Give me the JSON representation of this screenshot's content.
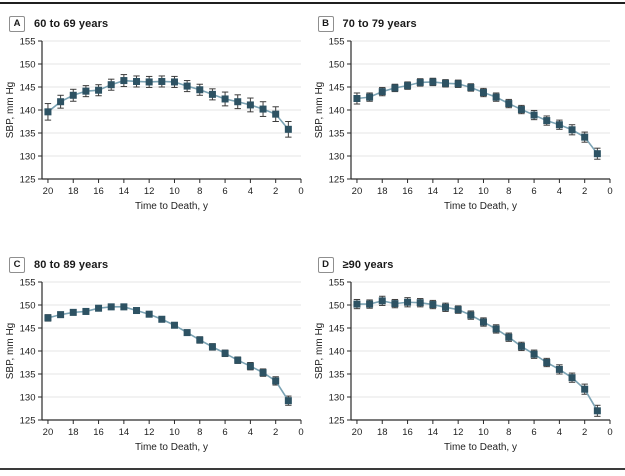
{
  "style": {
    "marker_color": "#2d5263",
    "series_line_color": "#7ba3b4",
    "error_bar_color": "#3c3c3c",
    "grid_color": "#e4e4e4",
    "axis_color": "#2a2a2a",
    "text_color": "#1f1f1f",
    "top_rule_color": "#1f1f1f",
    "bottom_rule_color": "#3a3a3a"
  },
  "chart_data": [
    {
      "type": "line",
      "panel_label": "A",
      "title": "60 to 69 years",
      "xlabel": "Time to Death, y",
      "ylabel": "SBP, mm Hg",
      "x_axis_reversed": true,
      "ylim": [
        125,
        155
      ],
      "yticks": [
        125,
        130,
        135,
        140,
        145,
        150,
        155
      ],
      "xticks": [
        20,
        18,
        16,
        14,
        12,
        10,
        8,
        6,
        4,
        2,
        0
      ],
      "grid": "horizontal",
      "x": [
        20,
        19,
        18,
        17,
        16,
        15,
        14,
        13,
        12,
        11,
        10,
        9,
        8,
        7,
        6,
        5,
        4,
        3,
        2,
        1
      ],
      "y": [
        139.6,
        141.8,
        143.2,
        144.1,
        144.3,
        145.5,
        146.4,
        146.2,
        146.1,
        146.2,
        146.1,
        145.2,
        144.4,
        143.4,
        142.4,
        141.8,
        141.1,
        140.2,
        139.1,
        135.8
      ],
      "err": [
        1.8,
        1.4,
        1.3,
        1.2,
        1.2,
        1.2,
        1.3,
        1.2,
        1.2,
        1.2,
        1.2,
        1.2,
        1.2,
        1.2,
        1.5,
        1.5,
        1.5,
        1.6,
        1.6,
        1.7
      ]
    },
    {
      "type": "line",
      "panel_label": "B",
      "title": "70 to 79 years",
      "xlabel": "Time to Death, y",
      "ylabel": "SBP, mm Hg",
      "x_axis_reversed": true,
      "ylim": [
        125,
        155
      ],
      "yticks": [
        125,
        130,
        135,
        140,
        145,
        150,
        155
      ],
      "xticks": [
        20,
        18,
        16,
        14,
        12,
        10,
        8,
        6,
        4,
        2,
        0
      ],
      "grid": "horizontal",
      "x": [
        20,
        19,
        18,
        17,
        16,
        15,
        14,
        13,
        12,
        11,
        10,
        9,
        8,
        7,
        6,
        5,
        4,
        3,
        2,
        1
      ],
      "y": [
        142.5,
        142.8,
        144.0,
        144.8,
        145.3,
        146.0,
        146.1,
        145.8,
        145.7,
        144.9,
        143.8,
        142.8,
        141.4,
        140.1,
        138.9,
        137.7,
        136.8,
        135.7,
        134.1,
        130.5
      ],
      "err": [
        1.2,
        0.9,
        0.9,
        0.8,
        0.8,
        0.8,
        0.8,
        0.8,
        0.8,
        0.8,
        0.9,
        0.9,
        0.9,
        0.9,
        1.0,
        1.0,
        1.0,
        1.1,
        1.1,
        1.2
      ]
    },
    {
      "type": "line",
      "panel_label": "C",
      "title": "80 to 89 years",
      "xlabel": "Time to Death, y",
      "ylabel": "SBP, mm Hg",
      "x_axis_reversed": true,
      "ylim": [
        125,
        155
      ],
      "yticks": [
        125,
        130,
        135,
        140,
        145,
        150,
        155
      ],
      "xticks": [
        20,
        18,
        16,
        14,
        12,
        10,
        8,
        6,
        4,
        2,
        0
      ],
      "grid": "horizontal",
      "x": [
        20,
        19,
        18,
        17,
        16,
        15,
        14,
        13,
        12,
        11,
        10,
        9,
        8,
        7,
        6,
        5,
        4,
        3,
        2,
        1
      ],
      "y": [
        147.2,
        147.9,
        148.4,
        148.6,
        149.3,
        149.6,
        149.6,
        148.8,
        148.0,
        146.9,
        145.6,
        144.0,
        142.4,
        140.9,
        139.5,
        138.0,
        136.7,
        135.3,
        133.5,
        129.2
      ],
      "err": [
        0.7,
        0.6,
        0.6,
        0.6,
        0.6,
        0.6,
        0.6,
        0.6,
        0.6,
        0.6,
        0.6,
        0.6,
        0.7,
        0.7,
        0.7,
        0.7,
        0.8,
        0.8,
        0.9,
        1.0
      ]
    },
    {
      "type": "line",
      "panel_label": "D",
      "title": "≥90 years",
      "xlabel": "Time to Death, y",
      "ylabel": "SBP, mm Hg",
      "x_axis_reversed": true,
      "ylim": [
        125,
        155
      ],
      "yticks": [
        125,
        130,
        135,
        140,
        145,
        150,
        155
      ],
      "xticks": [
        20,
        18,
        16,
        14,
        12,
        10,
        8,
        6,
        4,
        2,
        0
      ],
      "grid": "horizontal",
      "x": [
        20,
        19,
        18,
        17,
        16,
        15,
        14,
        13,
        12,
        11,
        10,
        9,
        8,
        7,
        6,
        5,
        4,
        3,
        2,
        1
      ],
      "y": [
        150.2,
        150.2,
        150.9,
        150.3,
        150.6,
        150.5,
        150.1,
        149.5,
        149.0,
        147.8,
        146.3,
        144.8,
        143.0,
        141.0,
        139.3,
        137.5,
        136.0,
        134.2,
        131.7,
        127.0
      ],
      "err": [
        1.0,
        0.9,
        1.0,
        0.9,
        1.0,
        0.9,
        0.9,
        0.9,
        0.8,
        0.9,
        0.9,
        0.9,
        0.9,
        0.9,
        0.9,
        0.9,
        1.0,
        1.0,
        1.1,
        1.2
      ]
    }
  ]
}
